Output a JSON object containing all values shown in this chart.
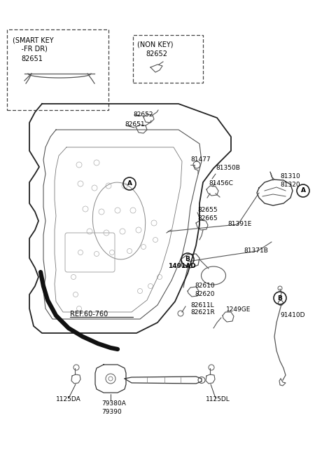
{
  "bg_color": "#ffffff",
  "fig_width": 4.8,
  "fig_height": 6.56,
  "dpi": 100,
  "labels": {
    "smart_key_line1": "(SMART KEY",
    "smart_key_line2": "    -FR DR)",
    "smart_key_part": "82651",
    "non_key_title": "(NON KEY)",
    "non_key_part": "82652",
    "p82652": "82652",
    "p82651": "82651",
    "p81477": "81477",
    "p81350B": "81350B",
    "p81456C": "81456C",
    "p82655": "82655",
    "p82665": "82665",
    "p81391E": "81391E",
    "p81310": "81310",
    "p81320": "81320",
    "p81371B": "81371B",
    "p1491AD": "1491AD",
    "p82610": "82610",
    "p82620": "82620",
    "p82611L": "82611L",
    "p82621R": "82621R",
    "p1249GE": "1249GE",
    "p91410D": "91410D",
    "pREF": "REF.60-760",
    "p1125DA": "1125DA",
    "p79380A": "79380A",
    "p79390": "79390",
    "p1125DL": "1125DL"
  }
}
